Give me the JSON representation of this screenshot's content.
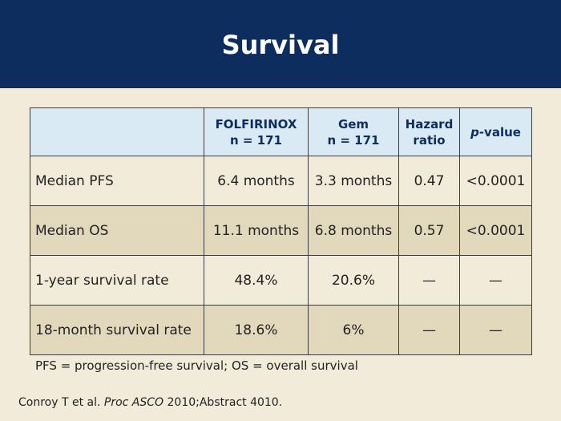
{
  "slide": {
    "title": "Survival"
  },
  "table": {
    "headers": {
      "folfirinox_line1": "FOLFIRINOX",
      "folfirinox_line2": "n = 171",
      "gem_line1": "Gem",
      "gem_line2": "n = 171",
      "hr_line1": "Hazard",
      "hr_line2": "ratio",
      "pvalue_italic": "p",
      "pvalue_rest": "-value"
    },
    "rows": [
      {
        "label": "Median PFS",
        "folfirinox": "6.4 months",
        "gem": "3.3 months",
        "hr": "0.47",
        "p": "<0.0001"
      },
      {
        "label": "Median OS",
        "folfirinox": "11.1 months",
        "gem": "6.8 months",
        "hr": "0.57",
        "p": "<0.0001"
      },
      {
        "label": "1-year survival rate",
        "folfirinox": "48.4%",
        "gem": "20.6%",
        "hr": "—",
        "p": "—"
      },
      {
        "label": "18-month survival rate",
        "folfirinox": "18.6%",
        "gem": "6%",
        "hr": "—",
        "p": "—"
      }
    ]
  },
  "footnote": "PFS = progression-free survival; OS = overall survival",
  "citation": {
    "authors": "Conroy T et al. ",
    "journal": "Proc ASCO",
    "rest": " 2010;Abstract 4010."
  }
}
